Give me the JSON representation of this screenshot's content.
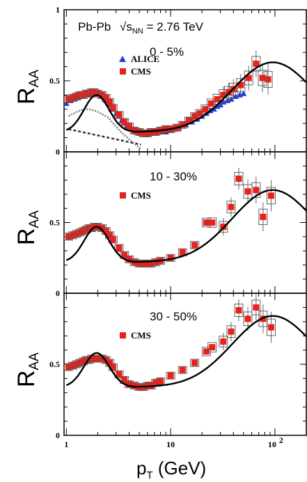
{
  "figure": {
    "x_axis_label": "p",
    "x_axis_label_sub": "T",
    "x_axis_label_unit": " (GeV)",
    "y_axis_label": "R",
    "y_axis_label_sub": "AA",
    "collision_label": "Pb-Pb",
    "energy_sqrt": "√",
    "energy_s": "s",
    "energy_sub": "NN",
    "energy_value": " = 2.76 TeV",
    "x_tick_labels": [
      "1",
      "10",
      "10"
    ],
    "x_tick_exponent": "2",
    "panels": [
      {
        "id": "p0",
        "centrality": "0 - 5%",
        "y_tick_labels": [
          "0",
          "0.5",
          "1"
        ]
      },
      {
        "id": "p1",
        "centrality": "10 - 30%",
        "y_tick_labels": [
          "0",
          "0.5"
        ]
      },
      {
        "id": "p2",
        "centrality": "30 - 50%",
        "y_tick_labels": [
          "0",
          "0.5"
        ]
      }
    ],
    "colors": {
      "cms": "#e8211c",
      "alice": "#1f3fd6",
      "frame": "#000000",
      "box": "#555555",
      "curve": "#000000"
    }
  },
  "chart_data": [
    {
      "type": "scatter",
      "panel": "0 - 5%",
      "x_scale": "log",
      "xlim": [
        0.95,
        200
      ],
      "ylim": [
        0,
        1
      ],
      "series": [
        {
          "name": "ALICE",
          "marker": "triangle",
          "x": [
            1.0,
            1.1,
            1.2,
            1.3,
            1.4,
            1.5,
            1.6,
            1.7,
            1.8,
            1.9,
            2.0,
            2.2,
            2.4,
            2.6,
            2.8,
            3.0,
            3.4,
            3.8,
            4.2,
            4.6,
            5.0,
            5.5,
            6.0,
            7.0,
            8.0,
            9.0,
            10,
            11,
            12,
            14,
            16,
            18,
            20,
            22,
            24,
            26,
            28,
            30,
            32,
            35,
            38,
            42,
            46,
            50
          ],
          "y": [
            0.34,
            0.36,
            0.37,
            0.38,
            0.39,
            0.4,
            0.4,
            0.41,
            0.41,
            0.41,
            0.41,
            0.39,
            0.36,
            0.33,
            0.3,
            0.27,
            0.22,
            0.18,
            0.16,
            0.14,
            0.13,
            0.13,
            0.13,
            0.13,
            0.14,
            0.14,
            0.15,
            0.16,
            0.17,
            0.19,
            0.21,
            0.23,
            0.25,
            0.27,
            0.29,
            0.3,
            0.32,
            0.33,
            0.35,
            0.36,
            0.37,
            0.39,
            0.4,
            0.41
          ]
        },
        {
          "name": "CMS",
          "marker": "square",
          "x": [
            1.05,
            1.15,
            1.25,
            1.35,
            1.45,
            1.55,
            1.65,
            1.75,
            1.85,
            2.0,
            2.2,
            2.4,
            2.6,
            2.8,
            3.2,
            3.6,
            4.0,
            4.5,
            5.0,
            5.5,
            6.0,
            6.5,
            7.2,
            8.0,
            9.0,
            10,
            11.5,
            13,
            15,
            17,
            19,
            21.5,
            24.5,
            28,
            32,
            36,
            40,
            47,
            56,
            66,
            76,
            86
          ],
          "y": [
            0.37,
            0.38,
            0.39,
            0.4,
            0.4,
            0.41,
            0.41,
            0.42,
            0.42,
            0.41,
            0.4,
            0.38,
            0.35,
            0.31,
            0.26,
            0.21,
            0.18,
            0.15,
            0.14,
            0.13,
            0.13,
            0.14,
            0.14,
            0.15,
            0.16,
            0.16,
            0.17,
            0.19,
            0.22,
            0.25,
            0.27,
            0.3,
            0.34,
            0.37,
            0.4,
            0.42,
            0.44,
            0.47,
            0.52,
            0.62,
            0.52,
            0.51
          ]
        }
      ]
    },
    {
      "type": "scatter",
      "panel": "10 - 30%",
      "x_scale": "log",
      "xlim": [
        0.95,
        200
      ],
      "ylim": [
        0,
        1
      ],
      "series": [
        {
          "name": "CMS",
          "marker": "square",
          "x": [
            1.05,
            1.15,
            1.25,
            1.35,
            1.45,
            1.55,
            1.65,
            1.75,
            1.85,
            2.0,
            2.2,
            2.4,
            2.6,
            2.8,
            3.2,
            3.6,
            4.0,
            4.5,
            5.0,
            5.5,
            6.0,
            6.5,
            7.2,
            8.0,
            10,
            13,
            17,
            22,
            25,
            32,
            38,
            45,
            55,
            66,
            77,
            92
          ],
          "y": [
            0.4,
            0.41,
            0.42,
            0.43,
            0.44,
            0.45,
            0.46,
            0.46,
            0.47,
            0.47,
            0.46,
            0.44,
            0.41,
            0.38,
            0.32,
            0.27,
            0.24,
            0.22,
            0.21,
            0.21,
            0.21,
            0.21,
            0.22,
            0.23,
            0.25,
            0.29,
            0.34,
            0.5,
            0.5,
            0.47,
            0.61,
            0.81,
            0.72,
            0.73,
            0.54,
            0.69
          ]
        }
      ]
    },
    {
      "type": "scatter",
      "panel": "30 - 50%",
      "x_scale": "log",
      "xlim": [
        0.95,
        200
      ],
      "ylim": [
        0,
        1
      ],
      "series": [
        {
          "name": "CMS",
          "marker": "square",
          "x": [
            1.05,
            1.15,
            1.25,
            1.35,
            1.45,
            1.55,
            1.65,
            1.75,
            1.85,
            2.0,
            2.2,
            2.4,
            2.6,
            2.8,
            3.2,
            3.6,
            4.0,
            4.5,
            5.0,
            5.5,
            6.0,
            6.5,
            7.2,
            8.0,
            10,
            13,
            17,
            22,
            25,
            32,
            38,
            45,
            55,
            66,
            77,
            92
          ],
          "y": [
            0.48,
            0.49,
            0.5,
            0.51,
            0.52,
            0.53,
            0.53,
            0.54,
            0.54,
            0.54,
            0.54,
            0.53,
            0.51,
            0.48,
            0.43,
            0.39,
            0.36,
            0.35,
            0.34,
            0.34,
            0.35,
            0.35,
            0.37,
            0.38,
            0.42,
            0.46,
            0.51,
            0.59,
            0.62,
            0.66,
            0.73,
            0.88,
            0.82,
            0.9,
            0.82,
            0.76
          ]
        }
      ]
    }
  ]
}
